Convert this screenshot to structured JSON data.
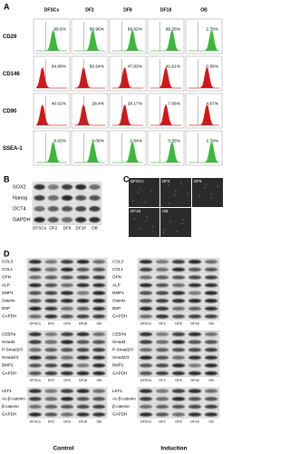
{
  "panel_a": {
    "label": "A",
    "columns": [
      "DFSCs",
      "DF2",
      "DF8",
      "DF18",
      "OB"
    ],
    "rows": [
      {
        "marker": "CD29",
        "values": [
          "99.6%",
          "99.96%",
          "99.92%",
          "99.25%",
          "2.79%"
        ]
      },
      {
        "marker": "CD146",
        "values": [
          "94.98%",
          "50.54%",
          "47.83%",
          "41.61%",
          "0.56%"
        ]
      },
      {
        "marker": "CD90",
        "values": [
          "40.02%",
          "28.4%",
          "28.17%",
          "7.66%",
          "4.67%"
        ]
      },
      {
        "marker": "SSEA-1",
        "values": [
          "9.93%",
          "9.06%",
          "2.64%",
          "0.35%",
          "2.79%"
        ]
      }
    ]
  },
  "panel_b": {
    "label": "B",
    "proteins": [
      "SOX2",
      "Nanog",
      "OCT4",
      "GAPDH"
    ],
    "lanes": [
      "DFSCs",
      "DF2",
      "DF8",
      "DF18",
      "OB"
    ]
  },
  "panel_c": {
    "label": "C",
    "images": [
      "DFSCs",
      "DF2",
      "DF8",
      "DF18",
      "OB"
    ]
  },
  "panel_d": {
    "label": "D",
    "control": {
      "title": "Control",
      "groups": [
        {
          "proteins": [
            "COL3",
            "COL1",
            "OPN",
            "ALP",
            "DMP1",
            "Osterix",
            "BSP",
            "GAPDH"
          ],
          "lanes": [
            "DFSCs",
            "DF2",
            "DF8",
            "DF18",
            "OB"
          ]
        },
        {
          "proteins": [
            "CEBPα",
            "Smad4",
            "P-Smad2/3",
            "Smad2/3",
            "BMP2",
            "GAPDH"
          ],
          "lanes": [
            "DFSCs",
            "DF2",
            "DF8",
            "DF18",
            "OB"
          ]
        },
        {
          "proteins": [
            "LEF1",
            "Ac-β-catenin",
            "β-catenin",
            "GAPDH"
          ],
          "lanes": [
            "DFSCs",
            "DF2",
            "DF8",
            "DF18",
            "OB"
          ]
        }
      ]
    },
    "induction": {
      "title": "Induction",
      "groups": [
        {
          "proteins": [
            "COL3",
            "COL1",
            "OPN",
            "ALP",
            "DMP1",
            "Osterix",
            "BSP",
            "GAPDH"
          ],
          "lanes": [
            "DFSCs",
            "DF2",
            "DF8",
            "DF18",
            "OB"
          ]
        },
        {
          "proteins": [
            "CEBPα",
            "Smad4",
            "P-Smad2/3",
            "Smad2/3",
            "BMP2",
            "GAPDH"
          ],
          "lanes": [
            "DFSCs",
            "DF2",
            "DF8",
            "DF18",
            "OB"
          ]
        },
        {
          "proteins": [
            "LEF1",
            "Ac-β-catenin",
            "β-catenin",
            "GAPDH"
          ],
          "lanes": [
            "DFSCs",
            "DF2",
            "DF8",
            "DF18",
            "OB"
          ]
        }
      ]
    }
  }
}
